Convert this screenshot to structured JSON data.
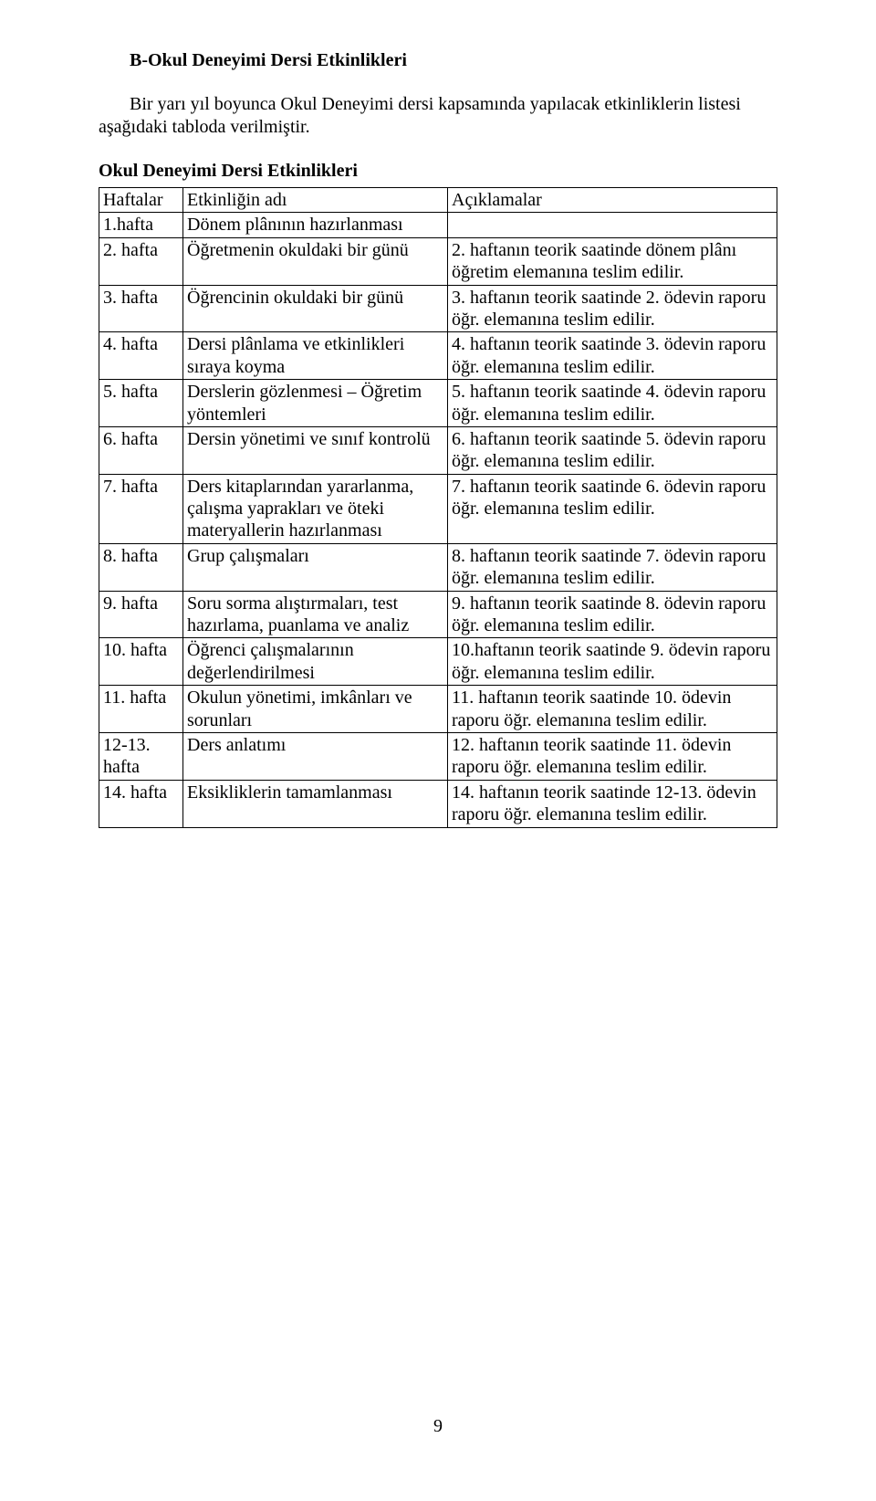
{
  "title": "B-Okul Deneyimi Dersi Etkinlikleri",
  "intro": "Bir yarı yıl boyunca Okul Deneyimi dersi kapsamında yapılacak etkinliklerin listesi aşağıdaki tabloda verilmiştir.",
  "subtitle": "Okul Deneyimi Dersi Etkinlikleri",
  "table": {
    "header": {
      "c1": "Haftalar",
      "c2": "Etkinliğin adı",
      "c3": "Açıklamalar"
    },
    "rows": [
      {
        "c1": "1.hafta",
        "c2": "Dönem plânının hazırlanması",
        "c3": ""
      },
      {
        "c1": "2. hafta",
        "c2": "Öğretmenin okuldaki bir günü",
        "c3": "2. haftanın teorik saatinde dönem plânı öğretim elemanına teslim edilir."
      },
      {
        "c1": "3. hafta",
        "c2": "Öğrencinin okuldaki bir günü",
        "c3": "3. haftanın teorik saatinde 2. ödevin raporu öğr. elemanına teslim edilir."
      },
      {
        "c1": "4. hafta",
        "c2": "Dersi plânlama ve etkinlikleri sıraya koyma",
        "c3": "4. haftanın teorik saatinde 3. ödevin raporu öğr. elemanına teslim edilir."
      },
      {
        "c1": "5. hafta",
        "c2": "Derslerin gözlenmesi – Öğretim yöntemleri",
        "c3": "5. haftanın teorik saatinde 4. ödevin raporu öğr. elemanına teslim edilir."
      },
      {
        "c1": "6. hafta",
        "c2": "Dersin yönetimi ve sınıf kontrolü",
        "c3": "6. haftanın teorik saatinde 5. ödevin raporu öğr. elemanına teslim edilir."
      },
      {
        "c1": "7. hafta",
        "c2": "Ders kitaplarından yararlanma, çalışma yaprakları ve öteki materyallerin hazırlanması",
        "c3": "7. haftanın teorik saatinde 6. ödevin raporu öğr. elemanına teslim edilir."
      },
      {
        "c1": "8. hafta",
        "c2": "Grup çalışmaları",
        "c3": "8. haftanın teorik saatinde 7. ödevin raporu öğr. elemanına teslim edilir."
      },
      {
        "c1": "9. hafta",
        "c2": "Soru sorma alıştırmaları, test hazırlama, puanlama ve analiz",
        "c3": "9. haftanın teorik saatinde 8. ödevin raporu öğr. elemanına teslim edilir."
      },
      {
        "c1": "10. hafta",
        "c2": "Öğrenci çalışmalarının değerlendirilmesi",
        "c3": "10.haftanın teorik saatinde 9. ödevin raporu öğr. elemanına teslim edilir."
      },
      {
        "c1": "11. hafta",
        "c2": "Okulun yönetimi, imkânları ve sorunları",
        "c3": "11. haftanın teorik saatinde 10. ödevin raporu öğr. elemanına teslim edilir."
      },
      {
        "c1": "12-13. hafta",
        "c2": "Ders anlatımı",
        "c3": "12. haftanın teorik saatinde 11. ödevin raporu öğr. elemanına teslim edilir."
      },
      {
        "c1": "14. hafta",
        "c2": "Eksikliklerin tamamlanması",
        "c3": "14. haftanın teorik saatinde 12-13. ödevin raporu öğr. elemanına teslim edilir."
      }
    ]
  },
  "page_number": "9"
}
